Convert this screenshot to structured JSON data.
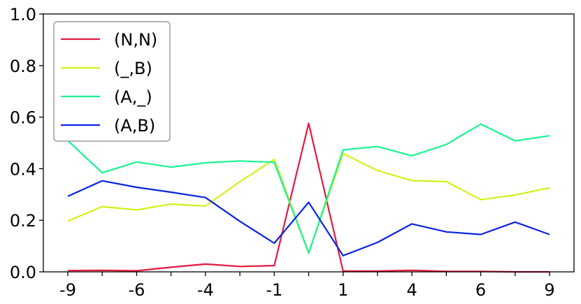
{
  "chart_data": {
    "type": "line",
    "x": [
      -9,
      -8,
      -6,
      -5,
      -4,
      -3,
      -1,
      0,
      1,
      2,
      4,
      5,
      6,
      7,
      9
    ],
    "series": [
      {
        "name": "(N,N)",
        "color": "#e6173d",
        "values": [
          0.005,
          0.006,
          0.004,
          0.018,
          0.03,
          0.021,
          0.024,
          0.576,
          0.003,
          0.003,
          0.006,
          0.002,
          0.002,
          0.0,
          0.0
        ]
      },
      {
        "name": "(_,B)",
        "color": "#d4f01a",
        "values": [
          0.197,
          0.253,
          0.24,
          0.263,
          0.255,
          0.35,
          0.436,
          0.074,
          0.459,
          0.393,
          0.354,
          0.35,
          0.28,
          0.298,
          0.326
        ]
      },
      {
        "name": "(A,_)",
        "color": "#19f590",
        "values": [
          0.509,
          0.384,
          0.426,
          0.406,
          0.423,
          0.43,
          0.425,
          0.073,
          0.473,
          0.486,
          0.45,
          0.494,
          0.573,
          0.508,
          0.528
        ]
      },
      {
        "name": "(A,B)",
        "color": "#0a24e0",
        "values": [
          0.293,
          0.353,
          0.328,
          0.309,
          0.288,
          0.196,
          0.111,
          0.27,
          0.063,
          0.114,
          0.186,
          0.155,
          0.145,
          0.193,
          0.145
        ]
      }
    ],
    "xticks": [
      -9,
      -8,
      -6,
      -5,
      -4,
      -3,
      -1,
      0,
      1,
      2,
      4,
      5,
      6,
      7,
      9
    ],
    "xtick_labels": [
      "-9",
      "",
      "-6",
      "",
      "-4",
      "",
      "-1",
      "",
      "1",
      "",
      "4",
      "",
      "6",
      "",
      "9"
    ],
    "yticks": [
      0.0,
      0.2,
      0.4,
      0.6,
      0.8,
      1.0
    ],
    "ytick_labels": [
      "0.0",
      "0.2",
      "0.4",
      "0.6",
      "0.8",
      "1.0"
    ],
    "ylim": [
      0,
      1
    ],
    "grid": false,
    "legend_position": "top-left",
    "title": "",
    "xlabel": "",
    "ylabel": ""
  }
}
